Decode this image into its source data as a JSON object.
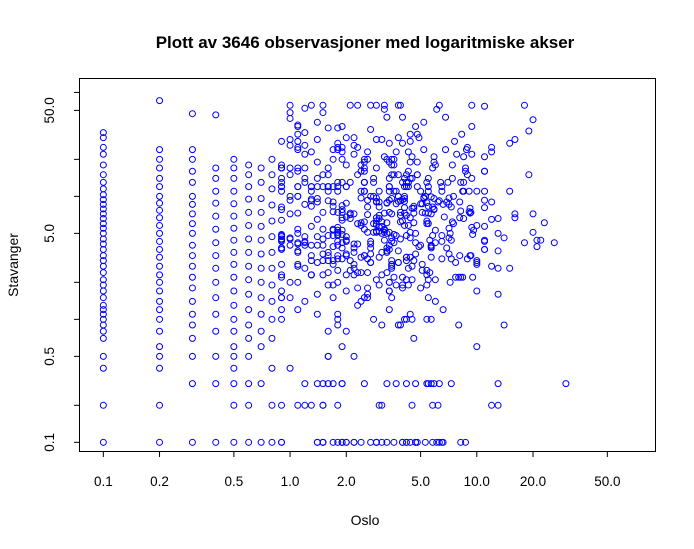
{
  "chart_data": {
    "type": "scatter",
    "title": "Plott av 3646 observasjoner med logaritmiske akser",
    "xlabel": "Oslo",
    "ylabel": "Stavanger",
    "x_scale": "log",
    "y_scale": "log",
    "xlim": [
      0.075,
      90
    ],
    "ylim": [
      0.085,
      90
    ],
    "x_ticks": [
      0.1,
      0.2,
      0.5,
      1,
      2,
      5,
      10,
      20,
      50
    ],
    "x_tick_labels": [
      "0.1",
      "0.2",
      "0.5",
      "1.0",
      "2.0",
      "5.0",
      "10.0",
      "20.0",
      "50.0"
    ],
    "y_ticks": [
      0.1,
      0.5,
      5,
      50
    ],
    "y_tick_labels": [
      "0.1",
      "0.5",
      "5.0",
      "50.0"
    ],
    "y_minor_ticks": [
      0.2,
      1,
      2,
      10,
      20,
      70
    ],
    "marker": "open-circle",
    "color": "#0000ff",
    "grid": false,
    "legend": "none",
    "series": [
      {
        "points": [
          [
            0.1,
            0.1
          ],
          [
            0.1,
            0.4
          ],
          [
            0.1,
            0.5
          ],
          [
            0.1,
            0.7
          ],
          [
            0.1,
            0.8
          ],
          [
            0.1,
            0.9
          ],
          [
            0.1,
            1.0
          ],
          [
            0.1,
            1.1
          ],
          [
            0.1,
            1.2
          ],
          [
            0.1,
            1.3
          ],
          [
            0.1,
            1.5
          ],
          [
            0.1,
            1.7
          ],
          [
            0.1,
            1.9
          ],
          [
            0.1,
            2.1
          ],
          [
            0.1,
            2.4
          ],
          [
            0.1,
            2.7
          ],
          [
            0.1,
            3.0
          ],
          [
            0.1,
            3.3
          ],
          [
            0.1,
            3.7
          ],
          [
            0.1,
            4.1
          ],
          [
            0.1,
            4.5
          ],
          [
            0.1,
            5.0
          ],
          [
            0.1,
            5.5
          ],
          [
            0.1,
            6.0
          ],
          [
            0.1,
            6.6
          ],
          [
            0.1,
            7.2
          ],
          [
            0.1,
            7.9
          ],
          [
            0.1,
            8.6
          ],
          [
            0.1,
            9.4
          ],
          [
            0.1,
            10.3
          ],
          [
            0.1,
            11.5
          ],
          [
            0.1,
            13
          ],
          [
            0.1,
            15
          ],
          [
            0.1,
            18
          ],
          [
            0.1,
            22
          ],
          [
            0.1,
            25
          ],
          [
            0.1,
            30
          ],
          [
            0.1,
            33
          ],
          [
            0.1,
            0.2
          ],
          [
            0.2,
            0.1
          ],
          [
            0.2,
            0.2
          ],
          [
            0.2,
            0.4
          ],
          [
            0.2,
            0.5
          ],
          [
            0.2,
            0.6
          ],
          [
            0.2,
            0.8
          ],
          [
            0.2,
            1.0
          ],
          [
            0.2,
            1.2
          ],
          [
            0.2,
            1.4
          ],
          [
            0.2,
            1.7
          ],
          [
            0.2,
            2.0
          ],
          [
            0.2,
            2.3
          ],
          [
            0.2,
            2.7
          ],
          [
            0.2,
            3.2
          ],
          [
            0.2,
            3.7
          ],
          [
            0.2,
            4.3
          ],
          [
            0.2,
            5.0
          ],
          [
            0.2,
            5.8
          ],
          [
            0.2,
            6.7
          ],
          [
            0.2,
            7.7
          ],
          [
            0.2,
            8.8
          ],
          [
            0.2,
            10
          ],
          [
            0.2,
            12
          ],
          [
            0.2,
            14
          ],
          [
            0.2,
            17
          ],
          [
            0.2,
            20
          ],
          [
            0.2,
            24
          ],
          [
            0.2,
            60
          ],
          [
            0.3,
            0.1
          ],
          [
            0.3,
            0.3
          ],
          [
            0.3,
            0.5
          ],
          [
            0.3,
            0.7
          ],
          [
            0.3,
            0.9
          ],
          [
            0.3,
            1.1
          ],
          [
            0.3,
            1.4
          ],
          [
            0.3,
            1.8
          ],
          [
            0.3,
            2.2
          ],
          [
            0.3,
            2.7
          ],
          [
            0.3,
            3.3
          ],
          [
            0.3,
            4.0
          ],
          [
            0.3,
            5.0
          ],
          [
            0.3,
            6.0
          ],
          [
            0.3,
            7.2
          ],
          [
            0.3,
            8.6
          ],
          [
            0.3,
            10
          ],
          [
            0.3,
            13
          ],
          [
            0.3,
            16
          ],
          [
            0.3,
            20
          ],
          [
            0.3,
            24
          ],
          [
            0.3,
            47
          ],
          [
            0.4,
            0.1
          ],
          [
            0.4,
            0.3
          ],
          [
            0.4,
            0.5
          ],
          [
            0.4,
            0.8
          ],
          [
            0.4,
            1.1
          ],
          [
            0.4,
            1.5
          ],
          [
            0.4,
            2.0
          ],
          [
            0.4,
            2.6
          ],
          [
            0.4,
            3.3
          ],
          [
            0.4,
            4.2
          ],
          [
            0.4,
            5.4
          ],
          [
            0.4,
            6.9
          ],
          [
            0.4,
            8.8
          ],
          [
            0.4,
            11
          ],
          [
            0.4,
            14
          ],
          [
            0.4,
            17
          ],
          [
            0.4,
            46
          ],
          [
            0.5,
            0.1
          ],
          [
            0.5,
            0.2
          ],
          [
            0.5,
            0.3
          ],
          [
            0.5,
            0.4
          ],
          [
            0.5,
            0.5
          ],
          [
            0.5,
            0.6
          ],
          [
            0.5,
            0.8
          ],
          [
            0.5,
            1.0
          ],
          [
            0.5,
            1.3
          ],
          [
            0.5,
            1.7
          ],
          [
            0.5,
            2.2
          ],
          [
            0.5,
            2.8
          ],
          [
            0.5,
            3.5
          ],
          [
            0.5,
            4.4
          ],
          [
            0.5,
            5.5
          ],
          [
            0.5,
            6.9
          ],
          [
            0.5,
            8.7
          ],
          [
            0.5,
            11
          ],
          [
            0.5,
            14
          ],
          [
            0.5,
            17
          ],
          [
            0.5,
            20
          ],
          [
            0.6,
            0.1
          ],
          [
            0.6,
            0.2
          ],
          [
            0.6,
            0.3
          ],
          [
            0.6,
            0.5
          ],
          [
            0.6,
            0.7
          ],
          [
            0.6,
            0.9
          ],
          [
            0.6,
            1.2
          ],
          [
            0.6,
            1.6
          ],
          [
            0.6,
            2.1
          ],
          [
            0.6,
            2.7
          ],
          [
            0.6,
            3.5
          ],
          [
            0.6,
            4.5
          ],
          [
            0.6,
            5.8
          ],
          [
            0.6,
            7.4
          ],
          [
            0.6,
            9.5
          ],
          [
            0.6,
            12
          ],
          [
            0.6,
            15
          ],
          [
            0.6,
            18
          ],
          [
            0.7,
            0.1
          ],
          [
            0.7,
            0.3
          ],
          [
            0.7,
            0.6
          ],
          [
            0.7,
            0.8
          ],
          [
            0.7,
            1.1
          ],
          [
            0.7,
            1.5
          ],
          [
            0.7,
            2.0
          ],
          [
            0.7,
            2.6
          ],
          [
            0.7,
            3.4
          ],
          [
            0.7,
            4.4
          ],
          [
            0.7,
            5.7
          ],
          [
            0.7,
            7.4
          ],
          [
            0.7,
            9.6
          ],
          [
            0.7,
            13
          ],
          [
            0.7,
            17
          ],
          [
            0.8,
            0.1
          ],
          [
            0.8,
            0.2
          ],
          [
            0.8,
            0.4
          ],
          [
            0.8,
            0.7
          ],
          [
            0.8,
            1.0
          ],
          [
            0.8,
            1.4
          ],
          [
            0.8,
            1.9
          ],
          [
            0.8,
            2.6
          ],
          [
            0.8,
            3.5
          ],
          [
            0.8,
            4.7
          ],
          [
            0.8,
            6.3
          ],
          [
            0.8,
            8.5
          ],
          [
            0.8,
            11.5
          ],
          [
            0.8,
            15
          ],
          [
            0.8,
            20
          ]
        ]
      }
    ]
  }
}
